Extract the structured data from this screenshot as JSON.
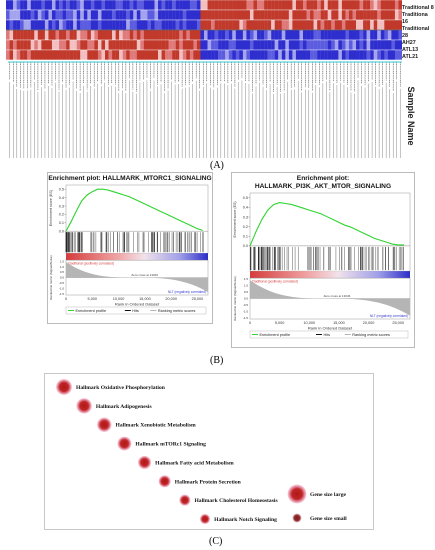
{
  "heatmap": {
    "row_labels": [
      "Traditional 8",
      "Traditiona 16",
      "Traditional 28",
      "AH27",
      "ATL13",
      "ATL21"
    ],
    "colors": {
      "high": "#c0392b",
      "mid": "#e88a8a",
      "low": "#3b3bd6",
      "lowmid": "#8a8ae8"
    }
  },
  "sample_axis_label": "Sample Name",
  "panel_a_label": "(A)",
  "panel_b_label": "(B)",
  "panel_c_label": "(C)",
  "gsea": [
    {
      "title_line1": "Enrichment plot: HALLMARK_MTORC1_SIGNALING",
      "title_line2": "",
      "es_axis": "Enrichment score (ES)",
      "es_ticks": [
        "0.5",
        "0.4",
        "0.3",
        "0.2",
        "0.1",
        "0.0"
      ],
      "rank_axis": "Ranked list metric (Signal2Noise)",
      "rank_ticks": [
        "1.5",
        "1.0",
        "0.5",
        "0.0",
        "-0.5",
        "-1.0",
        "-1.5"
      ],
      "x_ticks": [
        "0",
        "5,000",
        "10,000",
        "15,000",
        "20,000",
        "25,000"
      ],
      "x_label": "Rank in Ordered Dataset",
      "pos_label": "Traditional (positively correlated)",
      "neg_label": "NLT (negatively correlated)",
      "zero_label": "Zero cross at 13046",
      "legend": [
        "Enrichment profile",
        "Hits",
        "Ranking metric scores"
      ]
    },
    {
      "title_line1": "Enrichment plot:",
      "title_line2": "HALLMARK_PI3K_AKT_MTOR_SIGNALING",
      "es_axis": "Enrichment score (ES)",
      "es_ticks": [
        "0.5",
        "0.4",
        "0.3",
        "0.2",
        "0.1",
        "0.0"
      ],
      "rank_axis": "Ranked list metric (Signal2Noise)",
      "rank_ticks": [
        "1.5",
        "1.0",
        "0.5",
        "0.0",
        "-0.5",
        "-1.0",
        "-1.5"
      ],
      "x_ticks": [
        "0",
        "5,000",
        "10,000",
        "15,000",
        "20,000",
        "25,000"
      ],
      "x_label": "Rank in Ordered Dataset",
      "pos_label": "Traditional (positively correlated)",
      "neg_label": "NLT (negatively correlated)",
      "zero_label": "Zero cross at 13046",
      "legend": [
        "Enrichment profile",
        "Hits",
        "Ranking metric scores"
      ]
    }
  ],
  "pathways": [
    {
      "label": "Hallmark Oxidative Phosphorylation",
      "size": 1.0
    },
    {
      "label": "Hallmark Adipogenesis",
      "size": 0.95
    },
    {
      "label": "Hallmark Xenobiotic Metabolism",
      "size": 0.85
    },
    {
      "label": "Hallmark mTORc1 Signaling",
      "size": 0.8
    },
    {
      "label": "Hallmark Fatty acid Metabolism",
      "size": 0.72
    },
    {
      "label": "Hallmark Protein Secretion",
      "size": 0.62
    },
    {
      "label": "Hallmark Cholesterol Homeostasis",
      "size": 0.52
    },
    {
      "label": "Hallmark Notch Signaling",
      "size": 0.42
    }
  ],
  "size_legend": {
    "large": "Gene size large",
    "small": "Gene size small"
  },
  "chart_data": [
    {
      "type": "line",
      "title": "Enrichment plot: HALLMARK_MTORC1_SIGNALING",
      "xlabel": "Rank in Ordered Dataset",
      "ylabel": "Enrichment score (ES)",
      "xlim": [
        0,
        27000
      ],
      "ylim": [
        0,
        0.55
      ],
      "x": [
        0,
        1000,
        2000,
        3000,
        4000,
        5000,
        6000,
        7000,
        8000,
        9000,
        10000,
        11000,
        12000,
        13000,
        14000,
        15000,
        16000,
        17000,
        18000,
        19000,
        20000,
        21000,
        22000,
        23000,
        24000,
        25000,
        26000
      ],
      "series": [
        {
          "name": "Enrichment profile",
          "values": [
            0,
            0.12,
            0.25,
            0.37,
            0.44,
            0.48,
            0.51,
            0.51,
            0.5,
            0.48,
            0.46,
            0.44,
            0.42,
            0.39,
            0.36,
            0.33,
            0.3,
            0.27,
            0.24,
            0.21,
            0.18,
            0.15,
            0.12,
            0.09,
            0.06,
            0.03,
            0.01
          ]
        }
      ]
    },
    {
      "type": "line",
      "title": "Enrichment plot: HALLMARK_PI3K_AKT_MTOR_SIGNALING",
      "xlabel": "Rank in Ordered Dataset",
      "ylabel": "Enrichment score (ES)",
      "xlim": [
        0,
        27000
      ],
      "ylim": [
        0,
        0.55
      ],
      "x": [
        0,
        1000,
        2000,
        3000,
        4000,
        5000,
        6000,
        7000,
        8000,
        9000,
        10000,
        11000,
        12000,
        13000,
        14000,
        15000,
        16000,
        17000,
        18000,
        19000,
        20000,
        21000,
        22000,
        23000,
        24000,
        25000,
        26000
      ],
      "series": [
        {
          "name": "Enrichment profile",
          "values": [
            0,
            0.15,
            0.28,
            0.38,
            0.44,
            0.46,
            0.45,
            0.44,
            0.42,
            0.4,
            0.38,
            0.36,
            0.34,
            0.31,
            0.28,
            0.25,
            0.22,
            0.2,
            0.17,
            0.14,
            0.11,
            0.08,
            0.06,
            0.04,
            0.02,
            0.01,
            0.01
          ]
        }
      ]
    }
  ]
}
